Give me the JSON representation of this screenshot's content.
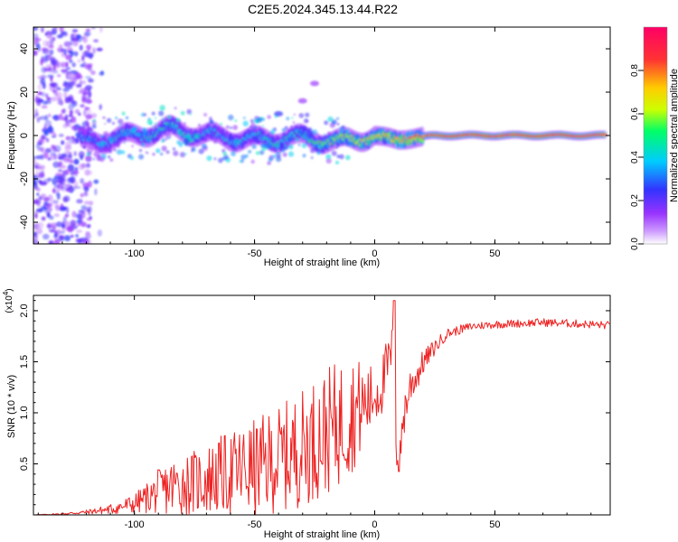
{
  "title": "C2E5.2024.345.13.44.R22",
  "chart_data": [
    {
      "type": "heatmap",
      "title": "C2E5.2024.345.13.44.R22",
      "xlabel": "Height of straight line (km)",
      "ylabel": "Frequency (Hz)",
      "xlim": [
        -142,
        98
      ],
      "ylim": [
        -50,
        50
      ],
      "xticks": [
        -100,
        -50,
        0,
        50
      ],
      "yticks": [
        -40,
        -20,
        0,
        20,
        40
      ],
      "description_of_ridge": [
        {
          "x": -120,
          "freq": -3,
          "amp": 0.35
        },
        {
          "x": -100,
          "freq": 0,
          "amp": 0.4
        },
        {
          "x": -85,
          "freq": 3,
          "amp": 0.45
        },
        {
          "x": -70,
          "freq": 0,
          "amp": 0.4
        },
        {
          "x": -50,
          "freq": -2,
          "amp": 0.4
        },
        {
          "x": -30,
          "freq": -1,
          "amp": 0.45
        },
        {
          "x": -15,
          "freq": -3,
          "amp": 0.6
        },
        {
          "x": 0,
          "freq": 0,
          "amp": 0.7
        },
        {
          "x": 10,
          "freq": -2,
          "amp": 0.75
        },
        {
          "x": 25,
          "freq": 0,
          "amp": 0.9
        },
        {
          "x": 50,
          "freq": 0,
          "amp": 0.95
        },
        {
          "x": 95,
          "freq": 0,
          "amp": 0.95
        }
      ],
      "secondary_branch": [
        {
          "x": -40,
          "freq": 10
        },
        {
          "x": -30,
          "freq": 16
        },
        {
          "x": -25,
          "freq": 24
        }
      ],
      "colorbar": {
        "label": "Normalized spectral amplitude",
        "range": [
          0.0,
          1.0
        ],
        "ticks": [
          "0.0",
          "0.2",
          "0.4",
          "0.6",
          "0.8"
        ],
        "colors": [
          "#ffffff",
          "#9933ff",
          "#3333ff",
          "#00ccff",
          "#00ff66",
          "#ccff00",
          "#ffcc00",
          "#ff3333",
          "#ff0066"
        ]
      }
    },
    {
      "type": "line",
      "xlabel": "Height of straight line (km)",
      "ylabel": "SNR (10 * v/v)",
      "exponent_label": "(x10^4)",
      "xlim": [
        -142,
        98
      ],
      "ylim": [
        0,
        2.15
      ],
      "xticks": [
        -100,
        -50,
        0,
        50
      ],
      "yticks": [
        "0.5",
        "1.0",
        "1.5",
        "2.0"
      ],
      "series": [
        {
          "name": "SNR",
          "color": "#ee2222",
          "x": [
            -142,
            -130,
            -120,
            -110,
            -100,
            -95,
            -90,
            -85,
            -80,
            -75,
            -70,
            -65,
            -60,
            -55,
            -50,
            -45,
            -40,
            -35,
            -30,
            -25,
            -20,
            -15,
            -10,
            -5,
            0,
            3,
            5,
            7,
            8,
            9,
            10,
            12,
            15,
            18,
            20,
            25,
            30,
            40,
            50,
            60,
            70,
            80,
            90,
            98
          ],
          "y": [
            0.0,
            0.01,
            0.03,
            0.06,
            0.12,
            0.18,
            0.25,
            0.3,
            0.33,
            0.35,
            0.38,
            0.42,
            0.45,
            0.48,
            0.5,
            0.55,
            0.6,
            0.65,
            0.72,
            0.8,
            0.88,
            0.95,
            1.05,
            1.1,
            1.2,
            1.3,
            1.45,
            1.6,
            1.7,
            0.6,
            0.45,
            1.0,
            1.3,
            1.4,
            1.5,
            1.65,
            1.78,
            1.85,
            1.87,
            1.88,
            1.89,
            1.88,
            1.87,
            1.86
          ],
          "noise": [
            0.0,
            0.01,
            0.02,
            0.05,
            0.1,
            0.15,
            0.22,
            0.28,
            0.3,
            0.32,
            0.35,
            0.38,
            0.42,
            0.45,
            0.48,
            0.5,
            0.52,
            0.55,
            0.58,
            0.6,
            0.62,
            0.62,
            0.6,
            0.45,
            0.3,
            0.3,
            0.3,
            0.25,
            0.3,
            0.1,
            0.1,
            0.25,
            0.2,
            0.15,
            0.12,
            0.08,
            0.05,
            0.04,
            0.04,
            0.04,
            0.04,
            0.04,
            0.04,
            0.04
          ]
        }
      ]
    }
  ]
}
